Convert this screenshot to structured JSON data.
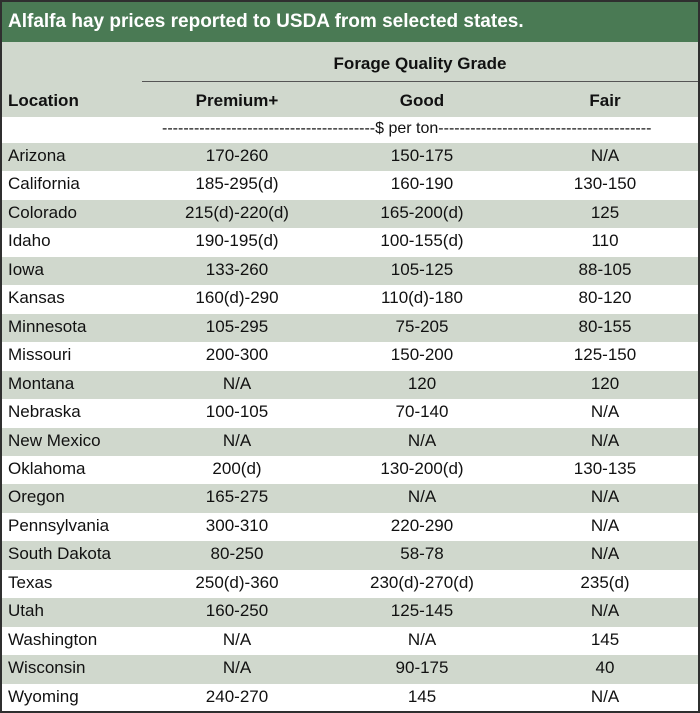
{
  "title": "Alfalfa hay prices reported to USDA from selected states.",
  "header": {
    "grade_group": "Forage Quality Grade",
    "location": "Location",
    "premium": "Premium+",
    "good": "Good",
    "fair": "Fair"
  },
  "units": "----------------------------------------$ per ton----------------------------------------",
  "rows": [
    {
      "location": "Arizona",
      "premium": "170-260",
      "good": "150-175",
      "fair": "N/A"
    },
    {
      "location": "California",
      "premium": "185-295(d)",
      "good": "160-190",
      "fair": "130-150"
    },
    {
      "location": "Colorado",
      "premium": "215(d)-220(d)",
      "good": "165-200(d)",
      "fair": "125"
    },
    {
      "location": "Idaho",
      "premium": "190-195(d)",
      "good": "100-155(d)",
      "fair": "110"
    },
    {
      "location": "Iowa",
      "premium": "133-260",
      "good": "105-125",
      "fair": "88-105"
    },
    {
      "location": "Kansas",
      "premium": "160(d)-290",
      "good": "110(d)-180",
      "fair": "80-120"
    },
    {
      "location": "Minnesota",
      "premium": "105-295",
      "good": "75-205",
      "fair": "80-155"
    },
    {
      "location": "Missouri",
      "premium": "200-300",
      "good": "150-200",
      "fair": "125-150"
    },
    {
      "location": "Montana",
      "premium": "N/A",
      "good": "120",
      "fair": "120"
    },
    {
      "location": "Nebraska",
      "premium": "100-105",
      "good": "70-140",
      "fair": "N/A"
    },
    {
      "location": "New Mexico",
      "premium": "N/A",
      "good": "N/A",
      "fair": "N/A"
    },
    {
      "location": "Oklahoma",
      "premium": "200(d)",
      "good": "130-200(d)",
      "fair": "130-135"
    },
    {
      "location": "Oregon",
      "premium": "165-275",
      "good": "N/A",
      "fair": "N/A"
    },
    {
      "location": "Pennsylvania",
      "premium": "300-310",
      "good": "220-290",
      "fair": "N/A"
    },
    {
      "location": "South Dakota",
      "premium": "80-250",
      "good": "58-78",
      "fair": "N/A"
    },
    {
      "location": "Texas",
      "premium": "250(d)-360",
      "good": "230(d)-270(d)",
      "fair": "235(d)"
    },
    {
      "location": "Utah",
      "premium": "160-250",
      "good": "125-145",
      "fair": "N/A"
    },
    {
      "location": "Washington",
      "premium": "N/A",
      "good": "N/A",
      "fair": "145"
    },
    {
      "location": "Wisconsin",
      "premium": "N/A",
      "good": "90-175",
      "fair": "40"
    },
    {
      "location": "Wyoming",
      "premium": "240-270",
      "good": "145",
      "fair": "N/A"
    }
  ],
  "colors": {
    "title_bg": "#4a7a54",
    "band": "#d0d8cd"
  }
}
